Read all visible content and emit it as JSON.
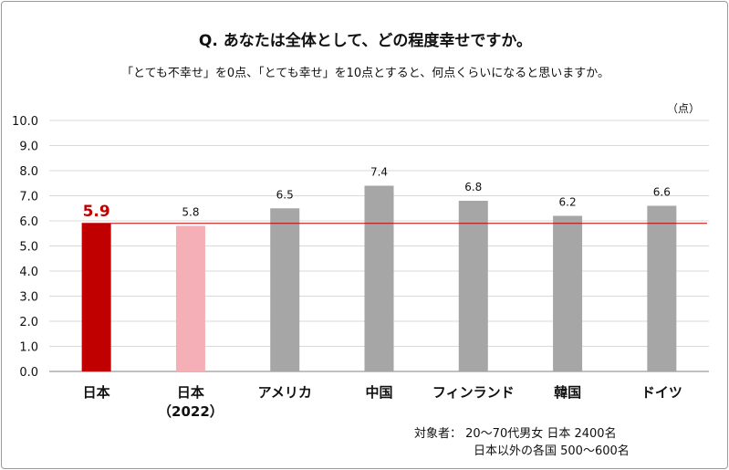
{
  "title": "Q. あなたは全体として、どの程度幸せですか。",
  "subtitle": "「とても不幸せ」を0点、「とても幸せ」を10点とすると、何点くらいになると思いますか。",
  "unit": "（点）",
  "footnote": {
    "line1": "対象者：  20～70代男女   日本  2400名",
    "line2": "日本以外の各国  500～600名"
  },
  "colors": {
    "japan": "#c00000",
    "japan_2022": "#f4b0b6",
    "other": "#a6a6a6",
    "reference_line": "#c00000",
    "grid": "#d9d9d9"
  },
  "chart_data": {
    "type": "bar",
    "categories": [
      "日本",
      "日本\n（2022）",
      "アメリカ",
      "中国",
      "フィンランド",
      "韓国",
      "ドイツ"
    ],
    "values": [
      5.9,
      5.8,
      6.5,
      7.4,
      6.8,
      6.2,
      6.6
    ],
    "data_labels": [
      "5.9",
      "5.8",
      "6.5",
      "7.4",
      "6.8",
      "6.2",
      "6.6"
    ],
    "ylim": [
      0,
      10
    ],
    "yticks": [
      "0.0",
      "1.0",
      "2.0",
      "3.0",
      "4.0",
      "5.0",
      "6.0",
      "7.0",
      "8.0",
      "9.0",
      "10.0"
    ],
    "reference_line": 5.9,
    "grid": true,
    "legend": false
  }
}
